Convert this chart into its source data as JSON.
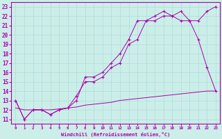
{
  "xlabel": "Windchill (Refroidissement éolien,°C)",
  "background_color": "#cceee8",
  "grid_color": "#aadddd",
  "line_color": "#aa00aa",
  "xlim": [
    -0.5,
    23.5
  ],
  "ylim": [
    10.5,
    23.5
  ],
  "xticks": [
    0,
    1,
    2,
    3,
    4,
    5,
    6,
    7,
    8,
    9,
    10,
    11,
    12,
    13,
    14,
    15,
    16,
    17,
    18,
    19,
    20,
    21,
    22,
    23
  ],
  "yticks": [
    11,
    12,
    13,
    14,
    15,
    16,
    17,
    18,
    19,
    20,
    21,
    22,
    23
  ],
  "line1_x": [
    0,
    1,
    2,
    3,
    4,
    5,
    6,
    7,
    8,
    9,
    10,
    11,
    12,
    13,
    14,
    15,
    16,
    17,
    18,
    19,
    20,
    21,
    22,
    23
  ],
  "line1_y": [
    13,
    11,
    12,
    12,
    11.5,
    12,
    12.2,
    13.5,
    15,
    15,
    15.5,
    16.5,
    17,
    19,
    19.5,
    21.5,
    21.5,
    22,
    22,
    21.5,
    21.5,
    19.5,
    16.5,
    14
  ],
  "line2_x": [
    0,
    1,
    2,
    3,
    4,
    5,
    6,
    7,
    8,
    9,
    10,
    11,
    12,
    13,
    14,
    15,
    16,
    17,
    18,
    19,
    20,
    21,
    22,
    23
  ],
  "line2_y": [
    13,
    11,
    12,
    12,
    11.5,
    12,
    12.2,
    13,
    15.5,
    15.5,
    16,
    17,
    18,
    19.5,
    21.5,
    21.5,
    22,
    22.5,
    22,
    22.5,
    21.5,
    21.5,
    22.5,
    23
  ],
  "line3_x": [
    0,
    1,
    2,
    3,
    4,
    5,
    6,
    7,
    8,
    9,
    10,
    11,
    12,
    13,
    14,
    15,
    16,
    17,
    18,
    19,
    20,
    21,
    22,
    23
  ],
  "line3_y": [
    12.2,
    12,
    12,
    12,
    12,
    12.1,
    12.2,
    12.3,
    12.5,
    12.6,
    12.7,
    12.8,
    13.0,
    13.1,
    13.2,
    13.3,
    13.4,
    13.5,
    13.6,
    13.7,
    13.8,
    13.9,
    14.0,
    14.0
  ]
}
